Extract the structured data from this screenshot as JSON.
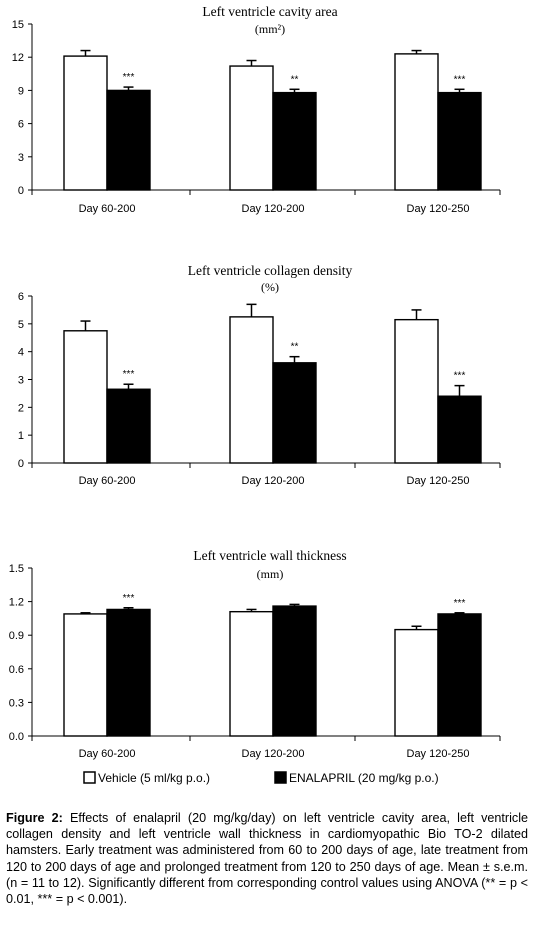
{
  "chart_data": [
    {
      "type": "bar",
      "title": "Left ventricle cavity area",
      "subtitle": "(mm²)",
      "categories": [
        "Day 60-200",
        "Day 120-200",
        "Day 120-250"
      ],
      "series": [
        {
          "name": "Vehicle (5 ml/kg p.o.)",
          "color": "#ffffff",
          "values": [
            12.1,
            11.2,
            12.3
          ],
          "errors": [
            0.5,
            0.5,
            0.3
          ]
        },
        {
          "name": "ENALAPRIL (20 mg/kg p.o.)",
          "color": "#000000",
          "values": [
            9.0,
            8.8,
            8.8
          ],
          "errors": [
            0.3,
            0.3,
            0.3
          ]
        }
      ],
      "significance": [
        "***",
        "**",
        "***"
      ],
      "ylim": [
        0,
        15
      ],
      "yticks": [
        "0",
        "3",
        "6",
        "9",
        "12",
        "15"
      ],
      "ytick_values": [
        0,
        3,
        6,
        9,
        12,
        15
      ]
    },
    {
      "type": "bar",
      "title": "Left ventricle collagen density",
      "subtitle": "(%)",
      "categories": [
        "Day 60-200",
        "Day 120-200",
        "Day 120-250"
      ],
      "series": [
        {
          "name": "Vehicle (5 ml/kg p.o.)",
          "color": "#ffffff",
          "values": [
            4.75,
            5.25,
            5.15
          ],
          "errors": [
            0.35,
            0.45,
            0.35
          ]
        },
        {
          "name": "ENALAPRIL (20 mg/kg p.o.)",
          "color": "#000000",
          "values": [
            2.65,
            3.6,
            2.4
          ],
          "errors": [
            0.18,
            0.22,
            0.38
          ]
        }
      ],
      "significance": [
        "***",
        "**",
        "***"
      ],
      "ylim": [
        0,
        6
      ],
      "yticks": [
        "0",
        "1",
        "2",
        "3",
        "4",
        "5",
        "6"
      ],
      "ytick_values": [
        0,
        1,
        2,
        3,
        4,
        5,
        6
      ]
    },
    {
      "type": "bar",
      "title": "Left ventricle wall thickness",
      "subtitle": "(mm)",
      "categories": [
        "Day 60-200",
        "Day 120-200",
        "Day 120-250"
      ],
      "series": [
        {
          "name": "Vehicle (5 ml/kg p.o.)",
          "color": "#ffffff",
          "values": [
            1.09,
            1.11,
            0.95
          ],
          "errors": [
            0.01,
            0.02,
            0.03
          ]
        },
        {
          "name": "ENALAPRIL (20 mg/kg p.o.)",
          "color": "#000000",
          "values": [
            1.13,
            1.16,
            1.09
          ],
          "errors": [
            0.015,
            0.015,
            0.01
          ]
        }
      ],
      "significance": [
        "***",
        "",
        "***"
      ],
      "ylim": [
        0,
        1.5
      ],
      "yticks": [
        "0.0",
        "0.3",
        "0.6",
        "0.9",
        "1.2",
        "1.5"
      ],
      "ytick_values": [
        0,
        0.3,
        0.6,
        0.9,
        1.2,
        1.5
      ]
    }
  ],
  "legend": {
    "items": [
      {
        "label": "Vehicle (5 ml/kg p.o.)",
        "color": "#ffffff"
      },
      {
        "label": "ENALAPRIL (20 mg/kg p.o.)",
        "color": "#000000"
      }
    ]
  },
  "caption": {
    "label": "Figure 2:",
    "text": " Effects of enalapril (20 mg/kg/day) on left ventricle cavity area, left ventricle collagen density and left ventricle wall thickness in cardiomyopathic Bio TO-2 dilated hamsters. Early treatment was administered from 60 to 200 days of age, late treatment from 120 to 200 days of age and prolonged treatment from 120 to 250 days of age. Mean ± s.e.m. (n = 11 to 12). Significantly different from corresponding control values using ANOVA (** = p < 0.01, *** = p < 0.001)."
  }
}
